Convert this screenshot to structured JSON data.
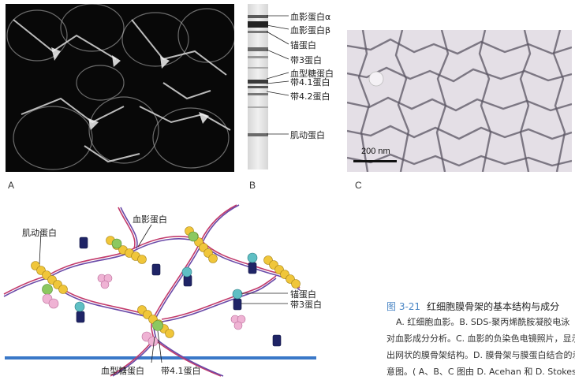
{
  "panels": {
    "a_label": "A",
    "b_label": "B",
    "c_label": "C"
  },
  "gel_bands": [
    {
      "label": "血影蛋白α"
    },
    {
      "label": "血影蛋白β"
    },
    {
      "label": "锚蛋白"
    },
    {
      "label": "带3蛋白"
    },
    {
      "label": "血型糖蛋白"
    },
    {
      "label": "带4.1蛋白"
    },
    {
      "label": "带4.2蛋白"
    },
    {
      "label": "肌动蛋白"
    }
  ],
  "scale_bar": {
    "label": "200 nm"
  },
  "diagram": {
    "actin_label": "肌动蛋白",
    "spectrin_label": "血影蛋白",
    "ankyrin_label": "锚蛋白",
    "band3_label": "带3蛋白",
    "glycophorin_label": "血型糖蛋白",
    "band41_label": "带4.1蛋白"
  },
  "caption": {
    "figure_number": "图 3-21",
    "title": "红细胞膜骨架的基本结构与成分",
    "lines": [
      "A. 红细胞血影。B. SDS-聚丙烯酰胺凝胶电泳",
      "对血影成分分析。C. 血影的负染色电镜照片，显示",
      "出网状的膜骨架结构。D. 膜骨架与膜蛋白结合的示",
      "意图。( A、B、C 图由 D. Acehan 和 D. Stokes 博士"
    ]
  },
  "colors": {
    "spectrin_red": "#c23a6b",
    "spectrin_blue": "#6a4aa8",
    "actin_yellow": "#f0c63a",
    "ankyrin_green": "#8cc860",
    "band3_navy": "#1f2466",
    "band3_teal": "#5fbfc4",
    "glycophorin_pink": "#efb3d4",
    "membrane_blue": "#3a78c8",
    "caption_blue": "#4a86c5"
  }
}
